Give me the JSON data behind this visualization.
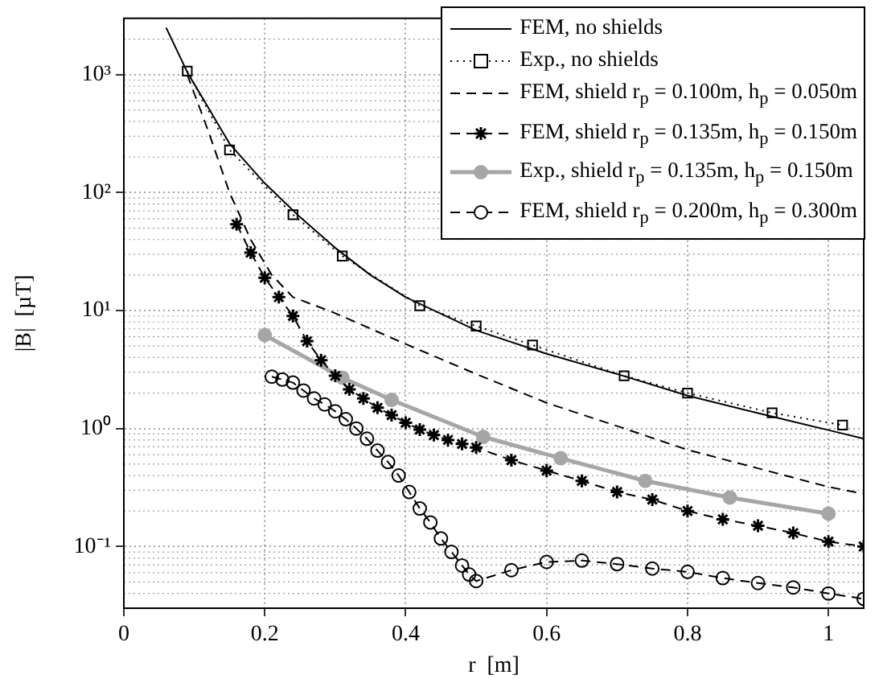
{
  "chart_data": {
    "type": "line",
    "xlabel": "r  [m]",
    "ylabel": "|B|  [µT]",
    "log": "y",
    "grid": true,
    "legend": "top right",
    "xlim": [
      0,
      1.05
    ],
    "xticks": [
      0,
      0.2,
      0.4,
      0.6,
      0.8,
      1
    ],
    "ylim": [
      0.03,
      3000
    ],
    "yticks": [
      {
        "value": 0.1,
        "label": "10⁻¹"
      },
      {
        "value": 1,
        "label": "10⁰"
      },
      {
        "value": 10,
        "label": "10¹"
      },
      {
        "value": 100,
        "label": "10²"
      },
      {
        "value": 1000,
        "label": "10³"
      }
    ],
    "series": [
      {
        "name": "FEM, no shields",
        "color": "#000000",
        "marker": "none",
        "line_style": "solid",
        "x": [
          0.06,
          0.09,
          0.15,
          0.2,
          0.25,
          0.3,
          0.35,
          0.4,
          0.5,
          0.6,
          0.7,
          0.8,
          0.9,
          1.0,
          1.05
        ],
        "values": [
          2500,
          1050,
          260,
          120,
          62,
          34,
          20,
          13,
          6.8,
          4.3,
          2.9,
          1.9,
          1.35,
          0.97,
          0.82
        ]
      },
      {
        "name": "Exp.,  no shields",
        "color": "#000000",
        "marker": "square",
        "line_style": "dotted",
        "x": [
          0.09,
          0.15,
          0.24,
          0.31,
          0.42,
          0.5,
          0.58,
          0.71,
          0.8,
          0.92,
          1.02
        ],
        "values": [
          1070,
          230,
          65,
          29,
          11,
          7.4,
          5.1,
          2.8,
          2.0,
          1.36,
          1.07
        ]
      },
      {
        "name": "FEM, shield r$_{p}$ = 0.100m, h$_{p}$ = 0.050m",
        "color": "#000000",
        "marker": "none",
        "line_style": "dashed",
        "x": [
          0.09,
          0.12,
          0.15,
          0.18,
          0.21,
          0.24,
          0.3,
          0.4,
          0.5,
          0.6,
          0.7,
          0.8,
          0.9,
          1.0,
          1.05
        ],
        "values": [
          1000,
          330,
          100,
          40,
          20,
          13,
          9.5,
          5.2,
          2.9,
          1.65,
          1.05,
          0.66,
          0.46,
          0.32,
          0.28
        ]
      },
      {
        "name": "FEM, shield r$_{p}$ = 0.135m, h$_{p}$ = 0.150m",
        "color": "#000000",
        "marker": "cross",
        "line_style": "dashed",
        "x": [
          0.16,
          0.18,
          0.2,
          0.22,
          0.24,
          0.26,
          0.28,
          0.3,
          0.32,
          0.34,
          0.36,
          0.38,
          0.4,
          0.42,
          0.44,
          0.46,
          0.48,
          0.5,
          0.55,
          0.6,
          0.65,
          0.7,
          0.75,
          0.8,
          0.85,
          0.9,
          0.95,
          1.0,
          1.05
        ],
        "values": [
          54,
          31,
          19,
          13,
          9,
          5.5,
          3.8,
          2.8,
          2.15,
          1.8,
          1.5,
          1.3,
          1.12,
          0.98,
          0.88,
          0.8,
          0.74,
          0.69,
          0.54,
          0.44,
          0.36,
          0.29,
          0.25,
          0.2,
          0.17,
          0.15,
          0.13,
          0.11,
          0.1
        ]
      },
      {
        "name": "Exp.,  shield r$_{p}$ = 0.135m, h$_{p}$ = 0.150m",
        "color": "#a6a6a6",
        "marker": "circle",
        "line_style": "solid",
        "x": [
          0.2,
          0.31,
          0.38,
          0.51,
          0.62,
          0.74,
          0.86,
          1.0
        ],
        "values": [
          6.2,
          2.7,
          1.75,
          0.85,
          0.56,
          0.36,
          0.26,
          0.19
        ]
      },
      {
        "name": "FEM, shield r$_{p}$ = 0.200m, h$_{p}$ = 0.300m",
        "color": "#000000",
        "marker": "circle",
        "line_style": "dashed",
        "x": [
          0.21,
          0.225,
          0.24,
          0.255,
          0.27,
          0.285,
          0.3,
          0.315,
          0.33,
          0.345,
          0.36,
          0.375,
          0.39,
          0.405,
          0.42,
          0.435,
          0.45,
          0.465,
          0.48,
          0.49,
          0.5,
          0.55,
          0.6,
          0.65,
          0.7,
          0.75,
          0.8,
          0.85,
          0.9,
          0.95,
          1.0,
          1.05
        ],
        "values": [
          2.75,
          2.6,
          2.45,
          2.1,
          1.8,
          1.6,
          1.4,
          1.2,
          1.0,
          0.82,
          0.65,
          0.52,
          0.4,
          0.29,
          0.21,
          0.16,
          0.117,
          0.09,
          0.069,
          0.058,
          0.051,
          0.063,
          0.074,
          0.076,
          0.071,
          0.065,
          0.061,
          0.054,
          0.049,
          0.045,
          0.04,
          0.036
        ]
      }
    ]
  }
}
